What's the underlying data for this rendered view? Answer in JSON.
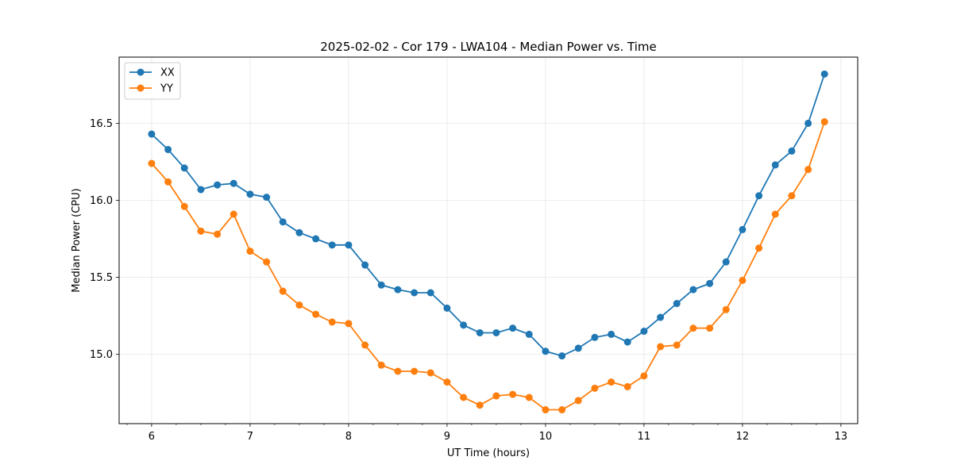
{
  "chart_data": {
    "type": "line",
    "title": "2025-02-02 - Cor 179 - LWA104 - Median Power vs. Time",
    "xlabel": "UT Time (hours)",
    "ylabel": "Median Power (CPU)",
    "xlim": [
      5.67,
      13.17
    ],
    "ylim": [
      14.55,
      16.93
    ],
    "xticks": [
      6,
      7,
      8,
      9,
      10,
      11,
      12,
      13
    ],
    "xtick_labels": [
      "6",
      "7",
      "8",
      "9",
      "10",
      "11",
      "12",
      "13"
    ],
    "yticks": [
      15.0,
      15.5,
      16.0,
      16.5
    ],
    "ytick_labels": [
      "15.0",
      "15.5",
      "16.0",
      "16.5"
    ],
    "grid": true,
    "legend_position": "top-left",
    "x": [
      6.0,
      6.167,
      6.333,
      6.5,
      6.667,
      6.833,
      7.0,
      7.167,
      7.333,
      7.5,
      7.667,
      7.833,
      8.0,
      8.167,
      8.333,
      8.5,
      8.667,
      8.833,
      9.0,
      9.167,
      9.333,
      9.5,
      9.667,
      9.833,
      10.0,
      10.167,
      10.333,
      10.5,
      10.667,
      10.833,
      11.0,
      11.167,
      11.333,
      11.5,
      11.667,
      11.833,
      12.0,
      12.167,
      12.333,
      12.5,
      12.667,
      12.833
    ],
    "series": [
      {
        "name": "XX",
        "color": "#1f77b4",
        "values": [
          16.43,
          16.33,
          16.21,
          16.07,
          16.1,
          16.11,
          16.04,
          16.02,
          15.86,
          15.79,
          15.75,
          15.71,
          15.71,
          15.58,
          15.45,
          15.42,
          15.4,
          15.4,
          15.3,
          15.19,
          15.14,
          15.14,
          15.17,
          15.13,
          15.02,
          14.99,
          15.04,
          15.11,
          15.13,
          15.08,
          15.15,
          15.24,
          15.33,
          15.42,
          15.46,
          15.6,
          15.81,
          16.03,
          16.23,
          16.32,
          16.5,
          16.82
        ]
      },
      {
        "name": "YY",
        "color": "#ff7f0e",
        "values": [
          16.24,
          16.12,
          15.96,
          15.8,
          15.78,
          15.91,
          15.67,
          15.6,
          15.41,
          15.32,
          15.26,
          15.21,
          15.2,
          15.06,
          14.93,
          14.89,
          14.89,
          14.88,
          14.82,
          14.72,
          14.67,
          14.73,
          14.74,
          14.72,
          14.64,
          14.64,
          14.7,
          14.78,
          14.82,
          14.79,
          14.86,
          15.05,
          15.06,
          15.17,
          15.17,
          15.29,
          15.48,
          15.69,
          15.91,
          16.03,
          16.2,
          16.51
        ]
      }
    ]
  }
}
